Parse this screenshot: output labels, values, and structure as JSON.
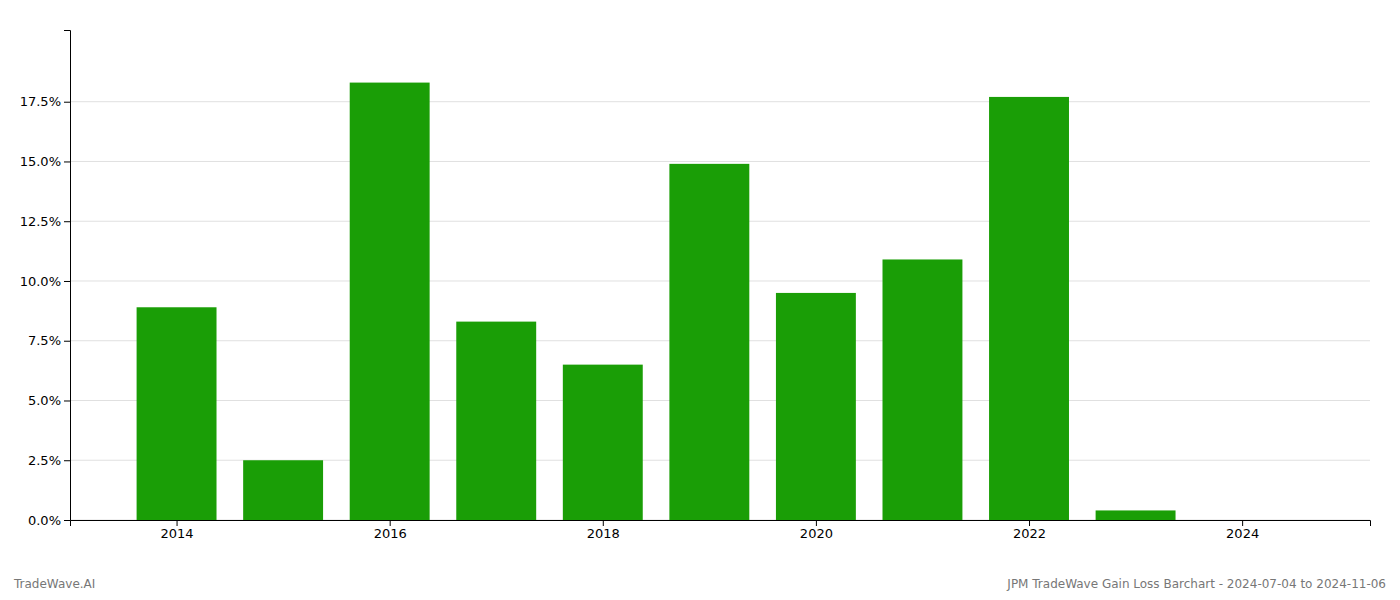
{
  "chart_data": {
    "type": "bar",
    "x": [
      2014,
      2015,
      2016,
      2017,
      2018,
      2019,
      2020,
      2021,
      2022,
      2023,
      2024
    ],
    "values": [
      0.089,
      0.025,
      0.183,
      0.083,
      0.065,
      0.149,
      0.095,
      0.109,
      0.177,
      0.004,
      0.0
    ],
    "color": "#1a9e06",
    "xlim": [
      2013.0,
      2025.2
    ],
    "xticks": [
      2014,
      2016,
      2018,
      2020,
      2022,
      2024
    ],
    "ylim": [
      0,
      0.205
    ],
    "yticks": [
      {
        "value": 0.0,
        "label": "0.0%"
      },
      {
        "value": 0.025,
        "label": "2.5%"
      },
      {
        "value": 0.05,
        "label": "5.0%"
      },
      {
        "value": 0.075,
        "label": "7.5%"
      },
      {
        "value": 0.1,
        "label": "10.0%"
      },
      {
        "value": 0.125,
        "label": "12.5%"
      },
      {
        "value": 0.15,
        "label": "15.0%"
      },
      {
        "value": 0.175,
        "label": "17.5%"
      }
    ],
    "grid": true,
    "annotations": [
      "TradeWave.AI",
      "JPM TradeWave Gain Loss Barchart - 2024-07-04 to 2024-11-06"
    ]
  }
}
